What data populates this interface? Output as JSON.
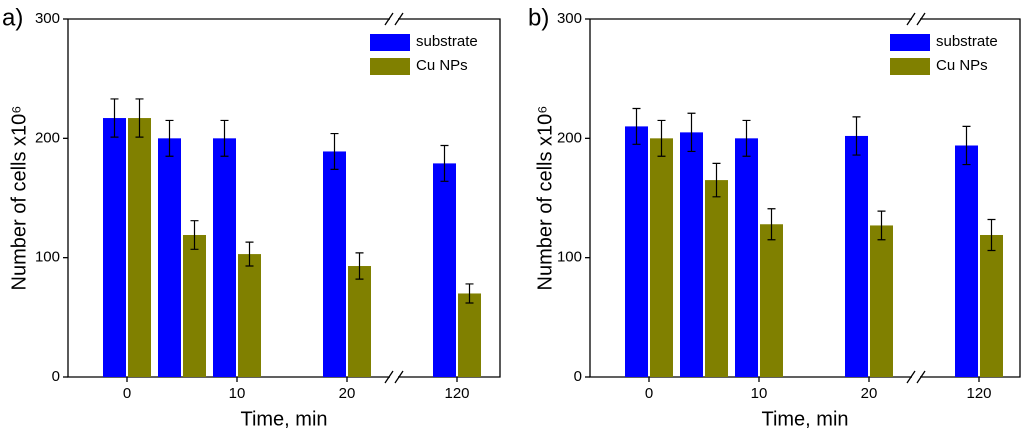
{
  "chart_data": [
    {
      "type": "bar",
      "panel_label": "a)",
      "xlabel": "Time, min",
      "ylabel": "Number of cells x10⁶",
      "categories": [
        "0",
        null,
        "10",
        null,
        "20",
        null,
        "120"
      ],
      "series": [
        {
          "name": "substrate",
          "color": "#0000ff",
          "values": [
            217,
            200,
            200,
            null,
            189,
            null,
            179
          ],
          "errors": [
            16,
            15,
            15,
            null,
            15,
            null,
            15
          ]
        },
        {
          "name": "Cu NPs",
          "color": "#808000",
          "values": [
            217,
            119,
            103,
            null,
            93,
            null,
            70
          ],
          "errors": [
            16,
            12,
            10,
            null,
            11,
            null,
            8
          ]
        }
      ],
      "ylim": [
        0,
        300
      ],
      "yticks": [
        0,
        100,
        200,
        300
      ],
      "legend": "upper right"
    },
    {
      "type": "bar",
      "panel_label": "b)",
      "xlabel": "Time, min",
      "ylabel": "Number of cells x10⁶",
      "categories": [
        "0",
        null,
        "10",
        null,
        "20",
        null,
        "120"
      ],
      "series": [
        {
          "name": "substrate",
          "color": "#0000ff",
          "values": [
            210,
            205,
            200,
            null,
            202,
            null,
            194
          ],
          "errors": [
            15,
            16,
            15,
            null,
            16,
            null,
            16
          ]
        },
        {
          "name": "Cu NPs",
          "color": "#808000",
          "values": [
            200,
            165,
            128,
            null,
            127,
            null,
            119
          ],
          "errors": [
            15,
            14,
            13,
            null,
            12,
            null,
            13
          ]
        }
      ],
      "ylim": [
        0,
        300
      ],
      "yticks": [
        0,
        100,
        200,
        300
      ],
      "legend": "upper right"
    }
  ]
}
